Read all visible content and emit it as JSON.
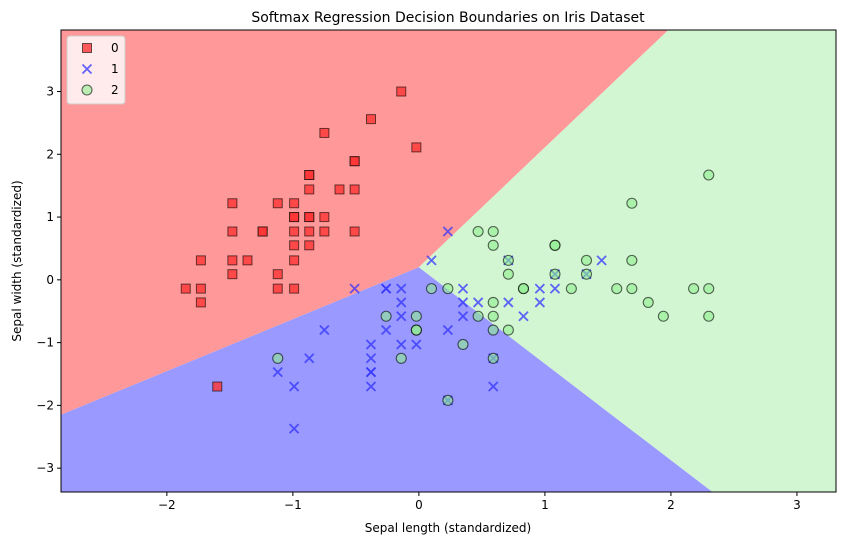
{
  "chart_data": {
    "type": "scatter",
    "title": "Softmax Regression Decision Boundaries on Iris Dataset",
    "xlabel": "Sepal length (standardized)",
    "ylabel": "Sepal width (standardized)",
    "xlim": [
      -2.84,
      3.31
    ],
    "ylim": [
      -3.38,
      3.98
    ],
    "xticks": [
      -2,
      -1,
      0,
      1,
      2,
      3
    ],
    "yticks": [
      -3,
      -2,
      -1,
      0,
      1,
      2,
      3
    ],
    "xtick_labels": [
      "−2",
      "−1",
      "0",
      "1",
      "2",
      "3"
    ],
    "ytick_labels": [
      "−3",
      "−2",
      "−1",
      "0",
      "1",
      "2",
      "3"
    ],
    "grid": false,
    "legend": {
      "placement": "top-left",
      "entries": [
        "0",
        "1",
        "2"
      ]
    },
    "decision_regions": [
      {
        "class": "0",
        "color": "#ff9999",
        "polygon": [
          [
            -2.84,
            3.98
          ],
          [
            1.98,
            3.98
          ],
          [
            0,
            0.2
          ],
          [
            -2.84,
            -2.15
          ]
        ]
      },
      {
        "class": "1",
        "color": "#9999ff",
        "polygon": [
          [
            -2.84,
            -2.15
          ],
          [
            0,
            0.2
          ],
          [
            2.33,
            -3.38
          ],
          [
            -2.84,
            -3.38
          ]
        ]
      },
      {
        "class": "2",
        "color": "#d2f5d2",
        "polygon": [
          [
            0,
            0.2
          ],
          [
            1.98,
            3.98
          ],
          [
            3.31,
            3.98
          ],
          [
            3.31,
            -3.38
          ],
          [
            2.33,
            -3.38
          ]
        ]
      }
    ],
    "series": [
      {
        "name": "0",
        "marker": "square",
        "color": "#ff3333",
        "points": [
          [
            -0.14,
            3.0
          ],
          [
            -0.38,
            2.56
          ],
          [
            -0.75,
            2.34
          ],
          [
            -0.02,
            2.11
          ],
          [
            -0.51,
            1.89
          ],
          [
            -0.51,
            1.89
          ],
          [
            -0.87,
            1.67
          ],
          [
            -0.87,
            1.67
          ],
          [
            -0.87,
            1.44
          ],
          [
            -0.63,
            1.44
          ],
          [
            -0.51,
            1.44
          ],
          [
            -1.48,
            1.22
          ],
          [
            -1.12,
            1.22
          ],
          [
            -0.99,
            1.22
          ],
          [
            -0.99,
            1.0
          ],
          [
            -0.99,
            1.0
          ],
          [
            -0.87,
            1.0
          ],
          [
            -0.87,
            1.0
          ],
          [
            -0.75,
            1.0
          ],
          [
            -1.48,
            0.77
          ],
          [
            -1.24,
            0.77
          ],
          [
            -1.24,
            0.77
          ],
          [
            -0.99,
            0.77
          ],
          [
            -0.87,
            0.77
          ],
          [
            -0.75,
            0.77
          ],
          [
            -0.51,
            0.77
          ],
          [
            -0.99,
            0.55
          ],
          [
            -0.87,
            0.55
          ],
          [
            -1.73,
            0.31
          ],
          [
            -1.48,
            0.31
          ],
          [
            -1.36,
            0.31
          ],
          [
            -0.99,
            0.31
          ],
          [
            -1.48,
            0.09
          ],
          [
            -1.12,
            0.09
          ],
          [
            -1.85,
            -0.14
          ],
          [
            -1.73,
            -0.14
          ],
          [
            -1.12,
            -0.14
          ],
          [
            -0.99,
            -0.14
          ],
          [
            -1.73,
            -0.36
          ],
          [
            -1.6,
            -1.7
          ]
        ]
      },
      {
        "name": "1",
        "marker": "x",
        "color": "#3333ff",
        "points": [
          [
            0.23,
            0.77
          ],
          [
            0.1,
            0.31
          ],
          [
            1.45,
            0.31
          ],
          [
            1.08,
            0.09
          ],
          [
            1.33,
            0.09
          ],
          [
            0.71,
            0.31
          ],
          [
            -0.51,
            -0.14
          ],
          [
            -0.26,
            -0.14
          ],
          [
            -0.26,
            -0.14
          ],
          [
            -0.14,
            -0.14
          ],
          [
            0.35,
            -0.14
          ],
          [
            0.96,
            -0.14
          ],
          [
            1.08,
            -0.14
          ],
          [
            -0.14,
            -0.36
          ],
          [
            0.35,
            -0.36
          ],
          [
            0.47,
            -0.36
          ],
          [
            0.71,
            -0.36
          ],
          [
            0.96,
            -0.36
          ],
          [
            -0.14,
            -0.58
          ],
          [
            0.35,
            -0.58
          ],
          [
            0.83,
            -0.58
          ],
          [
            -0.75,
            -0.8
          ],
          [
            -0.26,
            -0.8
          ],
          [
            0.23,
            -0.8
          ],
          [
            -0.38,
            -1.03
          ],
          [
            -0.14,
            -1.03
          ],
          [
            -0.02,
            -1.03
          ],
          [
            -0.87,
            -1.25
          ],
          [
            -0.38,
            -1.25
          ],
          [
            0.59,
            -1.25
          ],
          [
            -1.12,
            -1.47
          ],
          [
            -0.38,
            -1.47
          ],
          [
            -0.38,
            -1.47
          ],
          [
            -0.99,
            -1.7
          ],
          [
            -0.38,
            -1.7
          ],
          [
            0.59,
            -1.7
          ],
          [
            0.23,
            -1.92
          ],
          [
            -0.99,
            -2.37
          ]
        ]
      },
      {
        "name": "2",
        "marker": "circle",
        "color": "#90ee90",
        "points": [
          [
            2.3,
            1.67
          ],
          [
            1.69,
            1.22
          ],
          [
            0.47,
            0.77
          ],
          [
            0.59,
            0.77
          ],
          [
            0.59,
            0.55
          ],
          [
            1.08,
            0.55
          ],
          [
            1.08,
            0.55
          ],
          [
            0.71,
            0.31
          ],
          [
            1.33,
            0.31
          ],
          [
            1.69,
            0.31
          ],
          [
            0.71,
            0.09
          ],
          [
            1.08,
            0.09
          ],
          [
            1.33,
            0.09
          ],
          [
            0.1,
            -0.14
          ],
          [
            0.23,
            -0.14
          ],
          [
            0.83,
            -0.14
          ],
          [
            0.83,
            -0.14
          ],
          [
            1.21,
            -0.14
          ],
          [
            1.57,
            -0.14
          ],
          [
            1.69,
            -0.14
          ],
          [
            2.18,
            -0.14
          ],
          [
            2.3,
            -0.14
          ],
          [
            0.59,
            -0.36
          ],
          [
            1.82,
            -0.36
          ],
          [
            -0.26,
            -0.58
          ],
          [
            -0.02,
            -0.58
          ],
          [
            0.47,
            -0.58
          ],
          [
            0.59,
            -0.58
          ],
          [
            1.94,
            -0.58
          ],
          [
            2.3,
            -0.58
          ],
          [
            -0.02,
            -0.8
          ],
          [
            -0.02,
            -0.8
          ],
          [
            0.59,
            -0.8
          ],
          [
            0.71,
            -0.8
          ],
          [
            0.35,
            -1.03
          ],
          [
            -1.12,
            -1.25
          ],
          [
            -0.14,
            -1.25
          ],
          [
            0.59,
            -1.25
          ],
          [
            0.23,
            -1.92
          ]
        ]
      }
    ]
  }
}
